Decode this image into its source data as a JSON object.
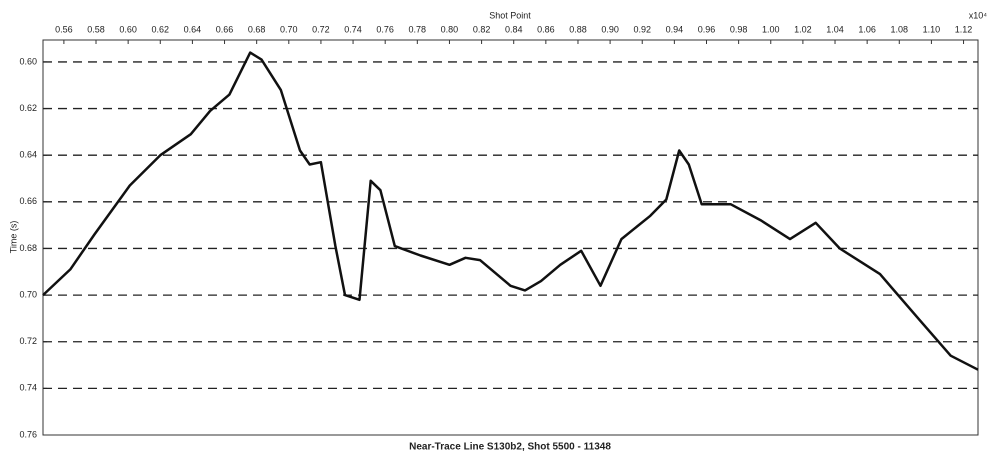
{
  "chart_data": {
    "type": "line",
    "title": "Near-Trace Line S130b2, Shot 5500 - 11348",
    "xlabel": "Shot Point",
    "ylabel": "Time (s)",
    "x_multiplier": "x10⁴",
    "color": "#111111",
    "grid": true,
    "y_inverted": true,
    "xlim": [
      0.547,
      1.129
    ],
    "ylim": [
      0.5906,
      0.76
    ],
    "xticks": [
      0.56,
      0.58,
      {
        "value": 0.6,
        "label": "0.60"
      },
      0.62,
      0.64,
      0.66,
      0.68,
      {
        "value": 0.7,
        "label": "0.70"
      },
      0.72,
      0.74,
      0.76,
      0.78,
      {
        "value": 0.8,
        "label": "0.80"
      },
      0.82,
      0.84,
      0.86,
      0.88,
      {
        "value": 0.9,
        "label": "0.90"
      },
      0.92,
      0.94,
      0.96,
      0.98,
      {
        "value": 1,
        "label": "1.00"
      },
      1.02,
      1.04,
      1.06,
      1.08,
      {
        "value": 1.1,
        "label": "1.10"
      },
      1.12
    ],
    "yticks": [
      {
        "value": 0.6,
        "label": "0.60"
      },
      0.62,
      0.64,
      0.66,
      0.68,
      {
        "value": 0.7,
        "label": "0.70"
      },
      0.72,
      0.74,
      0.76
    ],
    "x": [
      0.547,
      0.564,
      0.579,
      0.601,
      0.62,
      0.639,
      0.651,
      0.663,
      0.676,
      0.683,
      0.695,
      0.707,
      0.713,
      0.72,
      0.729,
      0.735,
      0.744,
      0.751,
      0.757,
      0.766,
      0.782,
      0.8,
      0.81,
      0.819,
      0.838,
      0.847,
      0.857,
      0.869,
      0.882,
      0.894,
      0.907,
      0.925,
      0.935,
      0.943,
      0.949,
      0.957,
      0.975,
      0.994,
      1.012,
      1.028,
      1.043,
      1.068,
      1.093,
      1.112,
      1.129
    ],
    "values": [
      0.7,
      0.689,
      0.674,
      0.653,
      0.64,
      0.631,
      0.621,
      0.614,
      0.596,
      0.599,
      0.612,
      0.638,
      0.644,
      0.643,
      0.679,
      0.7,
      0.702,
      0.651,
      0.655,
      0.679,
      0.683,
      0.687,
      0.684,
      0.685,
      0.696,
      0.698,
      0.694,
      0.687,
      0.681,
      0.696,
      0.676,
      0.666,
      0.659,
      0.638,
      0.644,
      0.661,
      0.661,
      0.668,
      0.676,
      0.669,
      0.68,
      0.691,
      0.711,
      0.726,
      0.732
    ]
  }
}
